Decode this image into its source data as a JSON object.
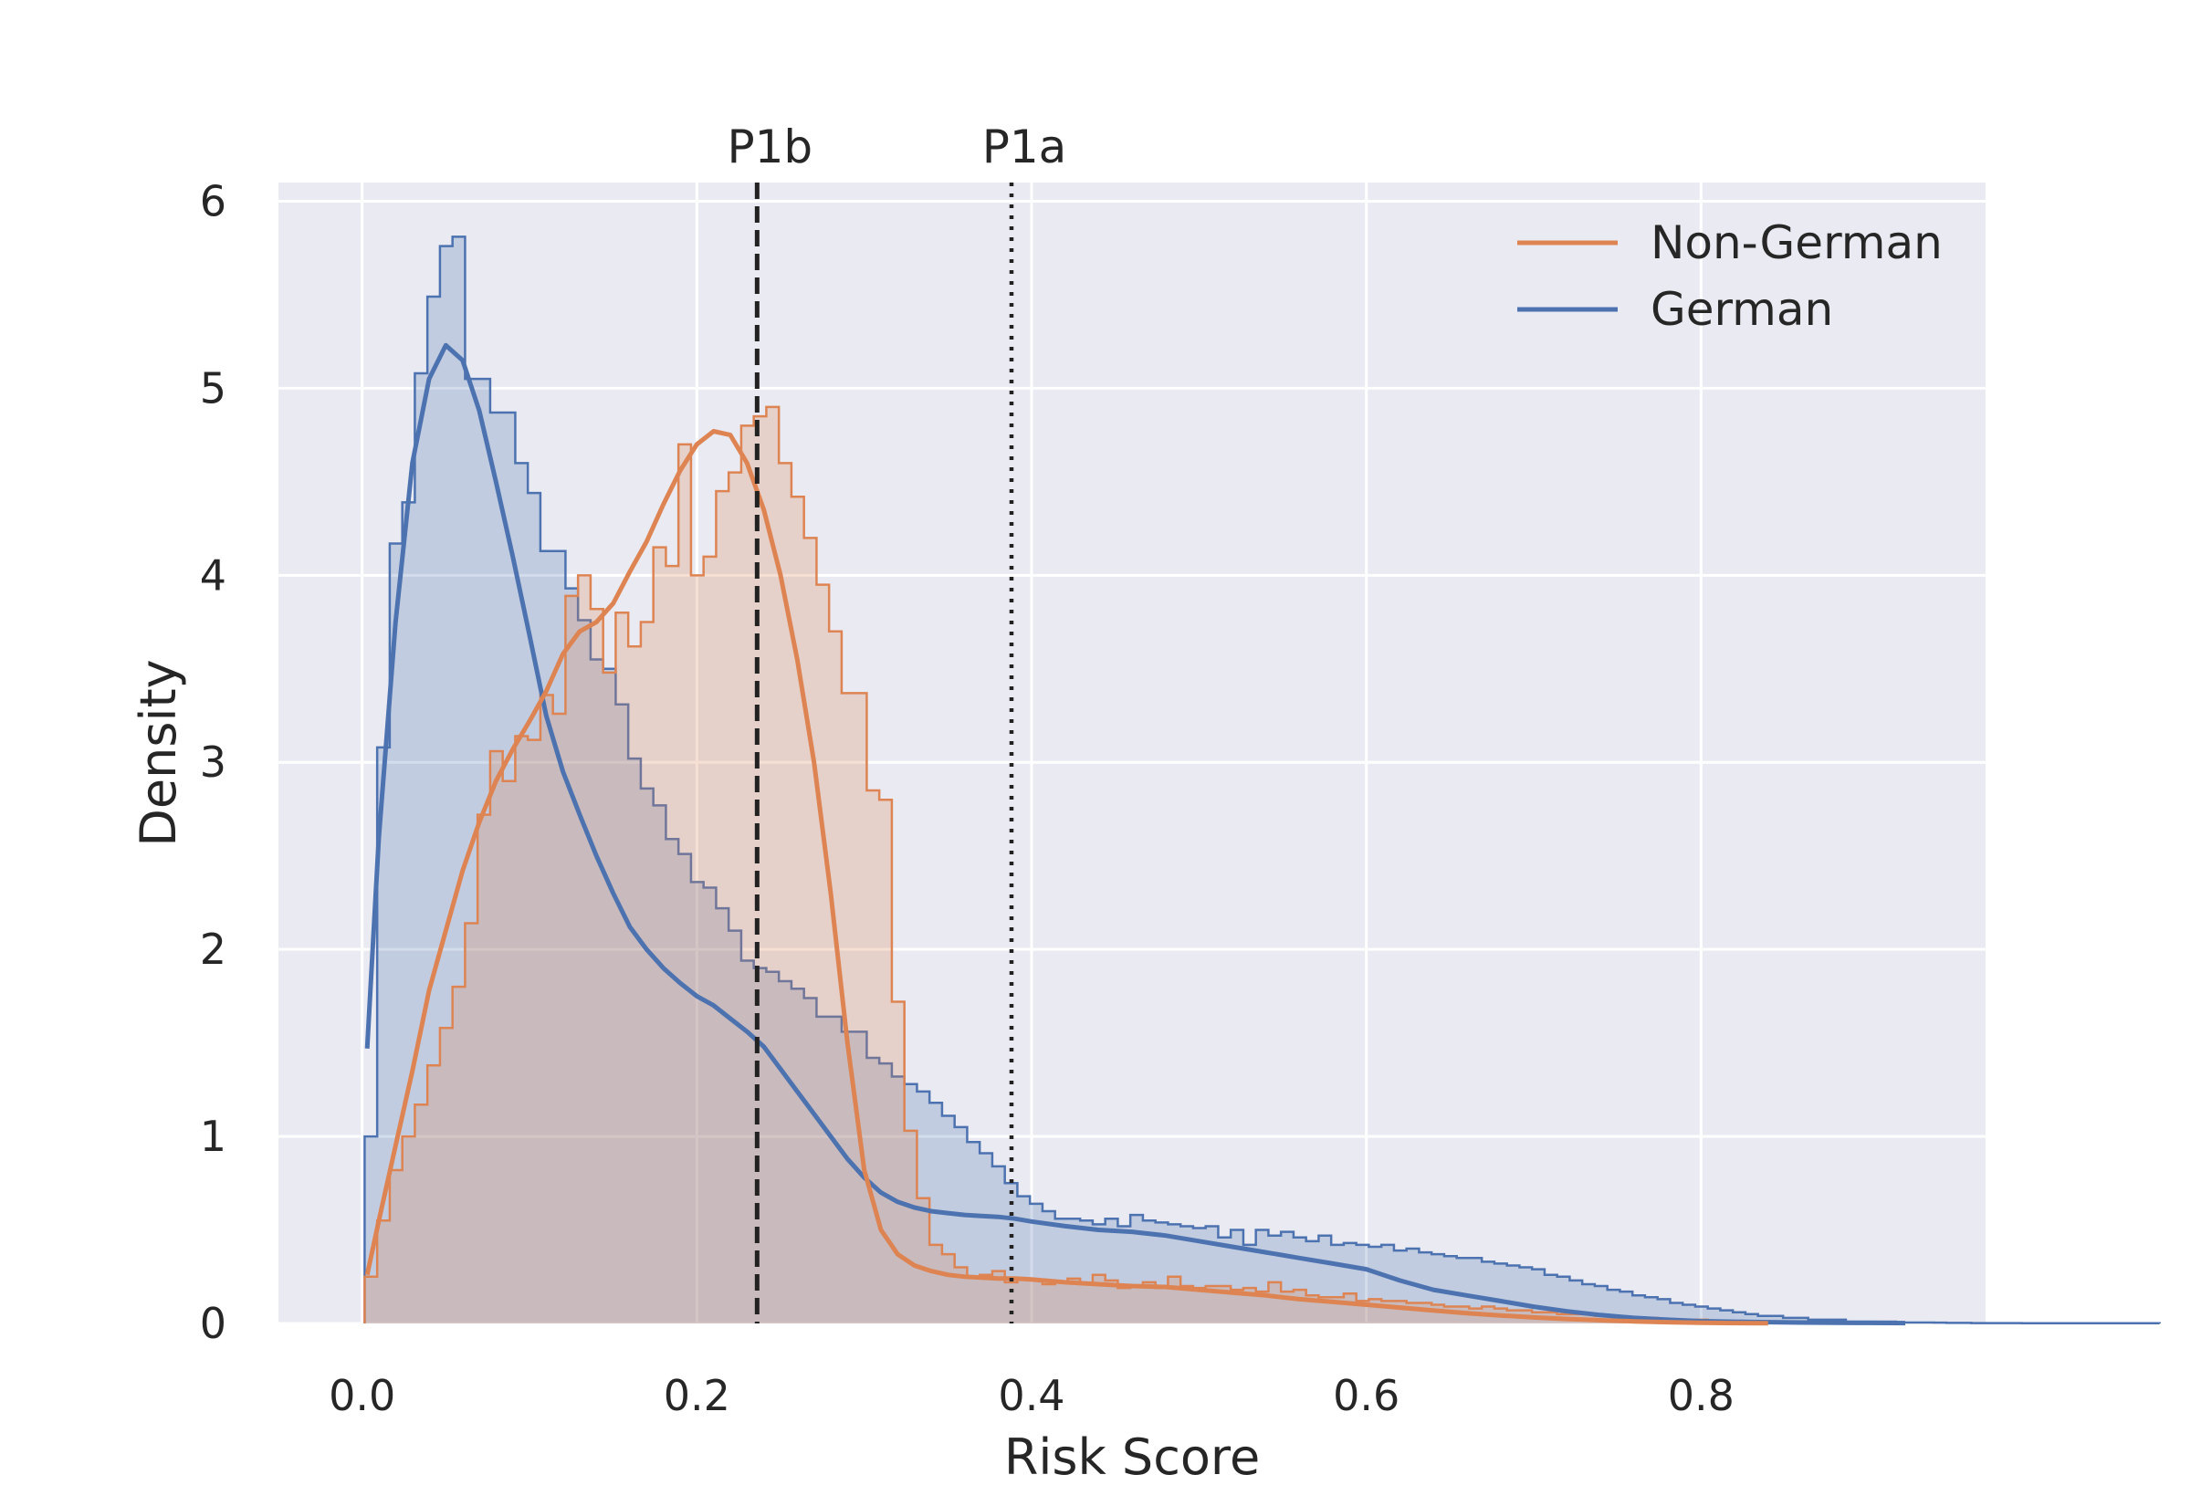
{
  "chart_data": {
    "type": "histogram",
    "xlabel": "Risk Score",
    "ylabel": "Density",
    "xlim": [
      -0.05,
      0.97
    ],
    "ylim": [
      0,
      6.1
    ],
    "x_ticks": [
      0.0,
      0.2,
      0.4,
      0.6,
      0.8
    ],
    "x_tick_labels": [
      "0.0",
      "0.2",
      "0.4",
      "0.6",
      "0.8"
    ],
    "y_ticks": [
      0,
      1,
      2,
      3,
      4,
      5,
      6
    ],
    "y_tick_labels": [
      "0",
      "1",
      "2",
      "3",
      "4",
      "5",
      "6"
    ],
    "grid": true,
    "legend_position": "top-right",
    "colors": {
      "background": "#eaeaf2",
      "grid": "#ffffff",
      "german": "#4c72b0",
      "non_german": "#dd8452",
      "text": "#262626",
      "vline": "#222222"
    },
    "legend": [
      {
        "label": "Non-German",
        "color": "#dd8452"
      },
      {
        "label": "German",
        "color": "#4c72b0"
      }
    ],
    "vlines": [
      {
        "label": "P1b",
        "x": 0.236,
        "style": "dashed"
      },
      {
        "label": "P1a",
        "x": 0.388,
        "style": "dotted"
      }
    ],
    "series": [
      {
        "name": "German",
        "color": "#4c72b0",
        "bin_width": 0.0075,
        "hist_x_start": 0.0015,
        "hist_values": [
          1.0,
          3.08,
          4.17,
          4.39,
          5.08,
          5.49,
          5.76,
          5.81,
          5.05,
          5.05,
          4.87,
          4.87,
          4.6,
          4.44,
          4.13,
          4.13,
          3.93,
          3.76,
          3.55,
          3.5,
          3.31,
          3.02,
          2.86,
          2.77,
          2.59,
          2.51,
          2.36,
          2.33,
          2.22,
          2.1,
          1.94,
          1.9,
          1.88,
          1.83,
          1.79,
          1.74,
          1.64,
          1.64,
          1.56,
          1.56,
          1.42,
          1.39,
          1.32,
          1.28,
          1.24,
          1.18,
          1.11,
          1.05,
          0.97,
          0.91,
          0.84,
          0.75,
          0.68,
          0.64,
          0.6,
          0.56,
          0.56,
          0.55,
          0.53,
          0.56,
          0.52,
          0.58,
          0.55,
          0.54,
          0.53,
          0.52,
          0.51,
          0.52,
          0.46,
          0.5,
          0.42,
          0.5,
          0.47,
          0.49,
          0.46,
          0.44,
          0.47,
          0.42,
          0.43,
          0.42,
          0.41,
          0.42,
          0.39,
          0.4,
          0.38,
          0.37,
          0.36,
          0.35,
          0.35,
          0.33,
          0.32,
          0.31,
          0.3,
          0.29,
          0.26,
          0.25,
          0.23,
          0.21,
          0.2,
          0.18,
          0.17,
          0.15,
          0.14,
          0.13,
          0.11,
          0.1,
          0.09,
          0.08,
          0.07,
          0.06,
          0.05,
          0.04,
          0.04,
          0.03,
          0.03,
          0.02,
          0.02,
          0.02,
          0.01,
          0.01,
          0.01,
          0.01,
          0.005,
          0.005,
          0.005,
          0.004,
          0.003,
          0.003,
          0.002,
          0.002,
          0.002,
          0.002,
          0.001,
          0.001,
          0.001,
          0.001,
          0.001,
          0.001,
          0.001,
          0.001,
          0.001,
          0.001,
          0.001
        ],
        "kde": [
          [
            0.003,
            1.47
          ],
          [
            0.01,
            2.6
          ],
          [
            0.02,
            3.75
          ],
          [
            0.03,
            4.6
          ],
          [
            0.04,
            5.05
          ],
          [
            0.05,
            5.23
          ],
          [
            0.06,
            5.15
          ],
          [
            0.07,
            4.88
          ],
          [
            0.08,
            4.5
          ],
          [
            0.09,
            4.1
          ],
          [
            0.1,
            3.68
          ],
          [
            0.11,
            3.25
          ],
          [
            0.12,
            2.95
          ],
          [
            0.13,
            2.72
          ],
          [
            0.14,
            2.5
          ],
          [
            0.15,
            2.3
          ],
          [
            0.16,
            2.12
          ],
          [
            0.17,
            2.0
          ],
          [
            0.18,
            1.9
          ],
          [
            0.19,
            1.82
          ],
          [
            0.2,
            1.75
          ],
          [
            0.21,
            1.7
          ],
          [
            0.22,
            1.63
          ],
          [
            0.23,
            1.56
          ],
          [
            0.24,
            1.48
          ],
          [
            0.25,
            1.36
          ],
          [
            0.26,
            1.24
          ],
          [
            0.27,
            1.12
          ],
          [
            0.28,
            1.0
          ],
          [
            0.29,
            0.88
          ],
          [
            0.3,
            0.78
          ],
          [
            0.31,
            0.7
          ],
          [
            0.32,
            0.65
          ],
          [
            0.33,
            0.62
          ],
          [
            0.34,
            0.6
          ],
          [
            0.35,
            0.59
          ],
          [
            0.36,
            0.58
          ],
          [
            0.37,
            0.575
          ],
          [
            0.38,
            0.57
          ],
          [
            0.39,
            0.56
          ],
          [
            0.4,
            0.545
          ],
          [
            0.42,
            0.52
          ],
          [
            0.44,
            0.5
          ],
          [
            0.46,
            0.49
          ],
          [
            0.48,
            0.47
          ],
          [
            0.5,
            0.44
          ],
          [
            0.52,
            0.41
          ],
          [
            0.54,
            0.38
          ],
          [
            0.56,
            0.35
          ],
          [
            0.58,
            0.32
          ],
          [
            0.6,
            0.29
          ],
          [
            0.62,
            0.23
          ],
          [
            0.64,
            0.18
          ],
          [
            0.66,
            0.15
          ],
          [
            0.68,
            0.12
          ],
          [
            0.7,
            0.09
          ],
          [
            0.72,
            0.065
          ],
          [
            0.74,
            0.045
          ],
          [
            0.76,
            0.03
          ],
          [
            0.78,
            0.02
          ],
          [
            0.8,
            0.012
          ],
          [
            0.83,
            0.008
          ],
          [
            0.86,
            0.005
          ],
          [
            0.9,
            0.003
          ],
          [
            0.922,
            0.002
          ]
        ]
      },
      {
        "name": "Non-German",
        "color": "#dd8452",
        "bin_width": 0.0075,
        "hist_x_start": 0.0015,
        "hist_values": [
          0.25,
          0.55,
          0.82,
          1.0,
          1.17,
          1.38,
          1.58,
          1.8,
          2.14,
          2.72,
          3.06,
          2.9,
          3.14,
          3.12,
          3.36,
          3.26,
          3.89,
          4.0,
          3.82,
          3.48,
          3.8,
          3.62,
          3.75,
          4.15,
          4.05,
          4.7,
          4.0,
          4.1,
          4.45,
          4.55,
          4.8,
          4.85,
          4.9,
          4.6,
          4.42,
          4.2,
          3.95,
          3.7,
          3.37,
          3.37,
          2.85,
          2.8,
          1.72,
          1.03,
          0.67,
          0.42,
          0.37,
          0.3,
          0.25,
          0.26,
          0.28,
          0.22,
          0.24,
          0.23,
          0.21,
          0.22,
          0.24,
          0.21,
          0.26,
          0.23,
          0.19,
          0.2,
          0.22,
          0.19,
          0.25,
          0.2,
          0.19,
          0.2,
          0.2,
          0.18,
          0.19,
          0.17,
          0.22,
          0.17,
          0.18,
          0.15,
          0.14,
          0.14,
          0.16,
          0.12,
          0.13,
          0.12,
          0.12,
          0.11,
          0.11,
          0.1,
          0.09,
          0.09,
          0.08,
          0.09,
          0.08,
          0.07,
          0.07,
          0.06,
          0.06,
          0.05,
          0.05,
          0.05,
          0.04,
          0.04,
          0.03,
          0.03,
          0.03,
          0.02,
          0.02,
          0.02,
          0.02,
          0.01,
          0.01,
          0.01,
          0.01,
          0.01,
          0.005,
          0.005,
          0.005,
          0.004,
          0.003,
          0.002,
          0.002,
          0.001,
          0.001
        ],
        "kde": [
          [
            0.003,
            0.26
          ],
          [
            0.01,
            0.55
          ],
          [
            0.02,
            0.95
          ],
          [
            0.03,
            1.35
          ],
          [
            0.04,
            1.78
          ],
          [
            0.05,
            2.1
          ],
          [
            0.06,
            2.42
          ],
          [
            0.07,
            2.68
          ],
          [
            0.08,
            2.9
          ],
          [
            0.09,
            3.07
          ],
          [
            0.1,
            3.22
          ],
          [
            0.11,
            3.38
          ],
          [
            0.12,
            3.58
          ],
          [
            0.13,
            3.7
          ],
          [
            0.14,
            3.75
          ],
          [
            0.15,
            3.85
          ],
          [
            0.16,
            4.02
          ],
          [
            0.17,
            4.18
          ],
          [
            0.18,
            4.38
          ],
          [
            0.19,
            4.56
          ],
          [
            0.2,
            4.7
          ],
          [
            0.21,
            4.77
          ],
          [
            0.22,
            4.75
          ],
          [
            0.23,
            4.6
          ],
          [
            0.24,
            4.35
          ],
          [
            0.25,
            4.0
          ],
          [
            0.26,
            3.55
          ],
          [
            0.27,
            3.0
          ],
          [
            0.28,
            2.3
          ],
          [
            0.29,
            1.5
          ],
          [
            0.3,
            0.82
          ],
          [
            0.31,
            0.5
          ],
          [
            0.32,
            0.37
          ],
          [
            0.33,
            0.31
          ],
          [
            0.34,
            0.28
          ],
          [
            0.35,
            0.26
          ],
          [
            0.36,
            0.25
          ],
          [
            0.37,
            0.245
          ],
          [
            0.38,
            0.24
          ],
          [
            0.39,
            0.24
          ],
          [
            0.4,
            0.235
          ],
          [
            0.42,
            0.22
          ],
          [
            0.44,
            0.21
          ],
          [
            0.46,
            0.2
          ],
          [
            0.48,
            0.195
          ],
          [
            0.5,
            0.18
          ],
          [
            0.52,
            0.165
          ],
          [
            0.54,
            0.15
          ],
          [
            0.56,
            0.13
          ],
          [
            0.58,
            0.115
          ],
          [
            0.6,
            0.1
          ],
          [
            0.62,
            0.085
          ],
          [
            0.64,
            0.07
          ],
          [
            0.66,
            0.055
          ],
          [
            0.68,
            0.043
          ],
          [
            0.7,
            0.032
          ],
          [
            0.72,
            0.024
          ],
          [
            0.74,
            0.017
          ],
          [
            0.76,
            0.011
          ],
          [
            0.78,
            0.007
          ],
          [
            0.8,
            0.004
          ],
          [
            0.82,
            0.002
          ],
          [
            0.84,
            0.001
          ]
        ]
      }
    ]
  }
}
